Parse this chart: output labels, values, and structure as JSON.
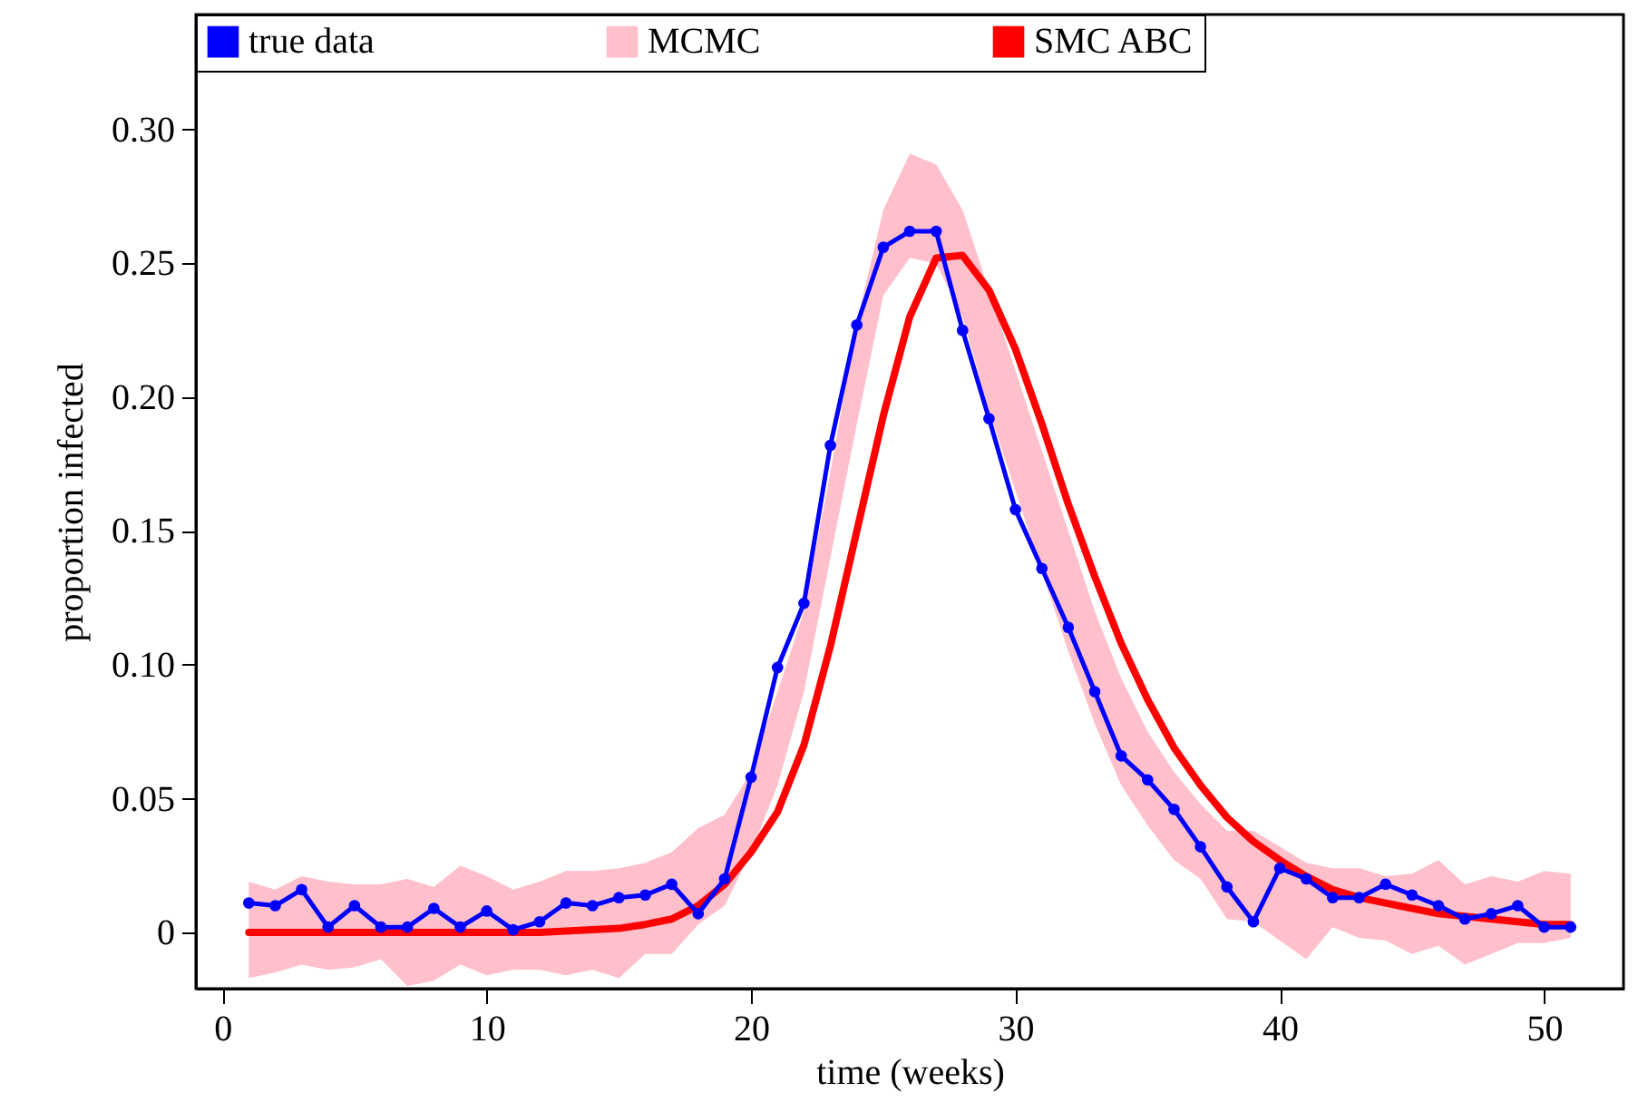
{
  "chart_data": {
    "type": "line",
    "xlabel": "time (weeks)",
    "ylabel": "proportion infected",
    "x": [
      1,
      2,
      3,
      4,
      5,
      6,
      7,
      8,
      9,
      10,
      11,
      12,
      13,
      14,
      15,
      16,
      17,
      18,
      19,
      20,
      21,
      22,
      23,
      24,
      25,
      26,
      27,
      28,
      29,
      30,
      31,
      32,
      33,
      34,
      35,
      36,
      37,
      38,
      39,
      40,
      41,
      42,
      43,
      44,
      45,
      46,
      47,
      48,
      49,
      50,
      51
    ],
    "series": [
      {
        "name": "true data",
        "color": "#0000ff",
        "marker": "circle",
        "values": [
          0.011,
          0.01,
          0.016,
          0.002,
          0.01,
          0.002,
          0.002,
          0.009,
          0.002,
          0.008,
          0.001,
          0.004,
          0.011,
          0.01,
          0.013,
          0.014,
          0.018,
          0.007,
          0.02,
          0.058,
          0.099,
          0.123,
          0.182,
          0.227,
          0.256,
          0.262,
          0.262,
          0.225,
          0.192,
          0.158,
          0.136,
          0.114,
          0.09,
          0.066,
          0.057,
          0.046,
          0.032,
          0.017,
          0.004,
          0.024,
          0.02,
          0.013,
          0.013,
          0.018,
          0.014,
          0.01,
          0.005,
          0.007,
          0.01,
          0.002,
          0.002
        ]
      },
      {
        "name": "MCMC",
        "type": "area",
        "color": "#ffc0cb",
        "values": [
          null,
          null,
          null,
          null,
          null,
          null,
          null,
          null,
          null,
          null,
          null,
          null,
          null,
          null,
          null,
          null,
          null,
          null,
          null,
          null,
          null,
          null,
          null,
          null,
          null,
          null,
          null,
          null,
          null,
          null,
          null,
          null,
          null,
          null,
          null,
          null,
          null,
          null,
          null,
          null,
          null,
          null,
          null,
          null,
          null,
          null,
          null,
          null,
          null,
          null,
          null
        ],
        "lower": [
          -0.017,
          -0.015,
          -0.012,
          -0.014,
          -0.013,
          -0.01,
          -0.02,
          -0.018,
          -0.012,
          -0.016,
          -0.014,
          -0.014,
          -0.016,
          -0.014,
          -0.017,
          -0.008,
          -0.008,
          0.003,
          0.01,
          0.03,
          0.055,
          0.09,
          0.14,
          0.19,
          0.238,
          0.252,
          0.25,
          0.23,
          0.195,
          0.165,
          0.135,
          0.105,
          0.078,
          0.055,
          0.04,
          0.027,
          0.02,
          0.005,
          0.004,
          -0.003,
          -0.01,
          0.002,
          -0.002,
          -0.003,
          -0.008,
          -0.005,
          -0.012,
          -0.008,
          -0.004,
          -0.004,
          -0.002
        ],
        "upper": [
          0.019,
          0.016,
          0.021,
          0.019,
          0.018,
          0.018,
          0.02,
          0.017,
          0.025,
          0.021,
          0.016,
          0.019,
          0.023,
          0.023,
          0.024,
          0.026,
          0.03,
          0.039,
          0.044,
          0.06,
          0.09,
          0.12,
          0.172,
          0.228,
          0.27,
          0.291,
          0.287,
          0.27,
          0.24,
          0.21,
          0.18,
          0.15,
          0.12,
          0.095,
          0.075,
          0.06,
          0.048,
          0.038,
          0.038,
          0.032,
          0.026,
          0.024,
          0.024,
          0.021,
          0.022,
          0.027,
          0.018,
          0.021,
          0.019,
          0.023,
          0.022
        ]
      },
      {
        "name": "SMC ABC",
        "color": "#ff0000",
        "values": [
          0,
          0,
          0,
          0,
          0,
          0,
          0,
          0,
          0,
          0,
          0,
          0,
          0.0005,
          0.001,
          0.0015,
          0.003,
          0.005,
          0.01,
          0.018,
          0.03,
          0.045,
          0.07,
          0.107,
          0.15,
          0.193,
          0.23,
          0.252,
          0.253,
          0.24,
          0.218,
          0.19,
          0.16,
          0.133,
          0.108,
          0.087,
          0.069,
          0.055,
          0.043,
          0.034,
          0.027,
          0.021,
          0.016,
          0.013,
          0.011,
          0.009,
          0.007,
          0.006,
          0.005,
          0.004,
          0.003,
          0.003
        ]
      }
    ],
    "xlim": [
      -1,
      53
    ],
    "xticks": [
      0,
      10,
      20,
      30,
      40,
      50
    ],
    "ylim": [
      -0.021,
      0.343
    ],
    "yticks": [
      0,
      0.05,
      {
        "value": 0.1,
        "label": "0.10"
      },
      0.15,
      {
        "value": 0.2,
        "label": "0.20"
      },
      0.25,
      {
        "value": 0.3,
        "label": "0.30"
      }
    ],
    "legend": "top",
    "grid": false
  }
}
